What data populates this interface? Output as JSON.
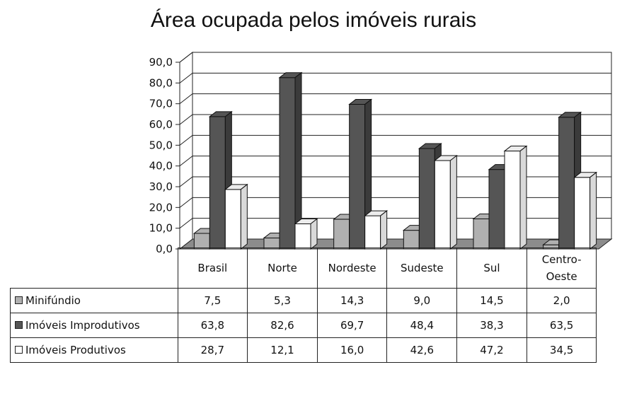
{
  "chart_data": {
    "type": "bar",
    "title": "Área ocupada pelos imóveis rurais",
    "categories": [
      "Brasil",
      "Norte",
      "Nordeste",
      "Sudeste",
      "Sul",
      "Centro-Oeste"
    ],
    "ylim": [
      0,
      90
    ],
    "yticks": [
      "0,0",
      "10,0",
      "20,0",
      "30,0",
      "40,0",
      "50,0",
      "60,0",
      "70,0",
      "80,0",
      "90,0"
    ],
    "grid": true,
    "series": [
      {
        "name": "Minifúndio",
        "color": "#b0b0b0",
        "values": [
          7.5,
          5.3,
          14.3,
          9.0,
          14.5,
          2.0
        ],
        "labels": [
          "7,5",
          "5,3",
          "14,3",
          "9,0",
          "14,5",
          "2,0"
        ]
      },
      {
        "name": "Imóveis Improdutivos",
        "color": "#555555",
        "values": [
          63.8,
          82.6,
          69.7,
          48.4,
          38.3,
          63.5
        ],
        "labels": [
          "63,8",
          "82,6",
          "69,7",
          "48,4",
          "38,3",
          "63,5"
        ]
      },
      {
        "name": "Imóveis Produtivos",
        "color": "#ffffff",
        "values": [
          28.7,
          12.1,
          16.0,
          42.6,
          47.2,
          34.5
        ],
        "labels": [
          "28,7",
          "12,1",
          "16,0",
          "42,6",
          "47,2",
          "34,5"
        ]
      }
    ]
  }
}
